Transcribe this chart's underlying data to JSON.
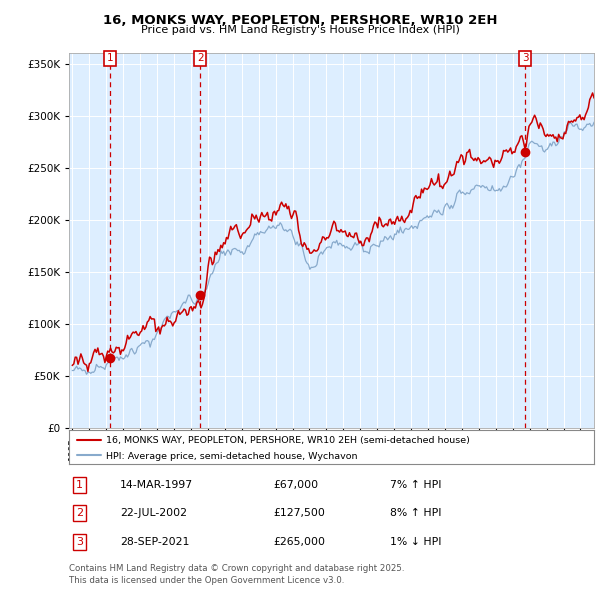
{
  "title": "16, MONKS WAY, PEOPLETON, PERSHORE, WR10 2EH",
  "subtitle": "Price paid vs. HM Land Registry's House Price Index (HPI)",
  "legend_line1": "16, MONKS WAY, PEOPLETON, PERSHORE, WR10 2EH (semi-detached house)",
  "legend_line2": "HPI: Average price, semi-detached house, Wychavon",
  "sale_color": "#cc0000",
  "hpi_color": "#88aacc",
  "background_color": "#ddeeff",
  "plot_bg": "#ddeeff",
  "ylim": [
    0,
    360000
  ],
  "yticks": [
    0,
    50000,
    100000,
    150000,
    200000,
    250000,
    300000,
    350000
  ],
  "sale_prices": [
    67000,
    127500,
    265000
  ],
  "sale_labels": [
    "1",
    "2",
    "3"
  ],
  "sale_pct": [
    "7% ↑ HPI",
    "8% ↑ HPI",
    "1% ↓ HPI"
  ],
  "sale_date_labels": [
    "14-MAR-1997",
    "22-JUL-2002",
    "28-SEP-2021"
  ],
  "sale_year_floats": [
    1997.2,
    2002.55,
    2021.75
  ],
  "footnote": "Contains HM Land Registry data © Crown copyright and database right 2025.\nThis data is licensed under the Open Government Licence v3.0.",
  "x_start_year": 1995,
  "x_end_year": 2025
}
